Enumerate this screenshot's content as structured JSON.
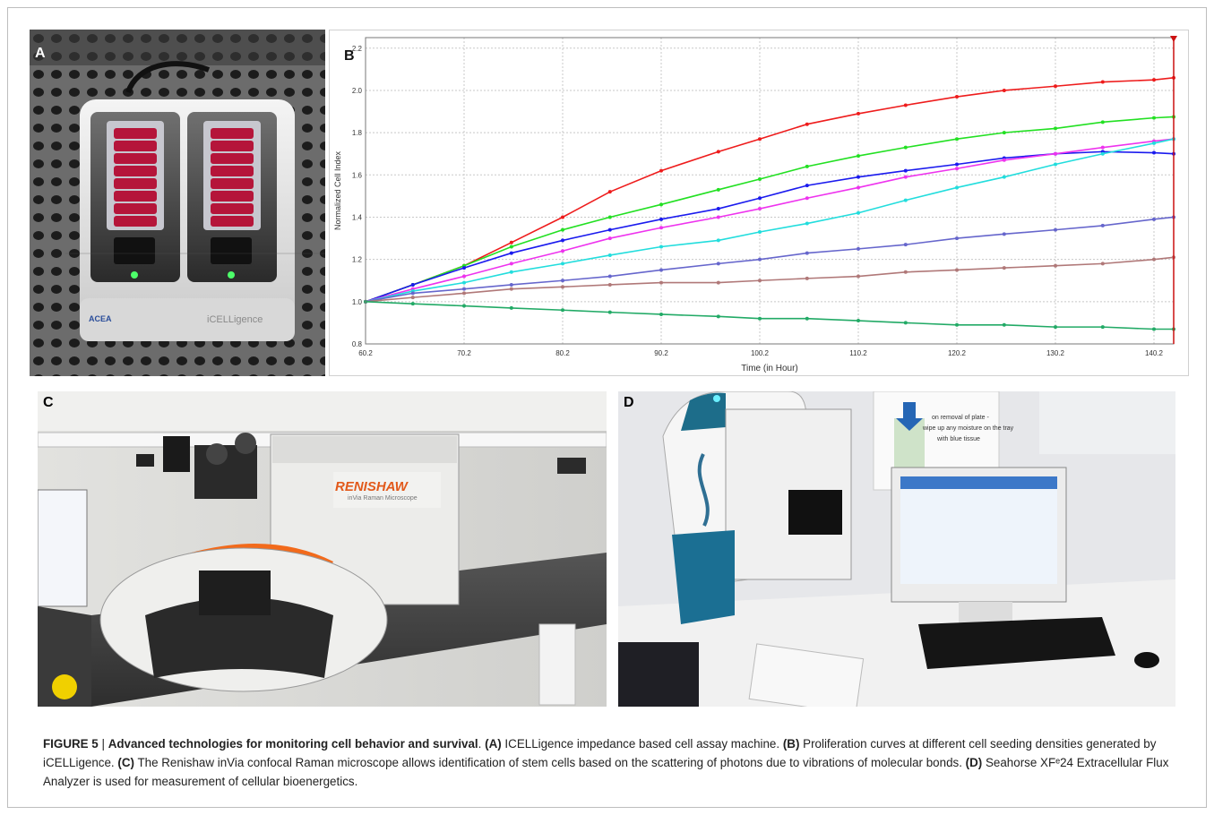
{
  "panels": {
    "a": {
      "letter": "A",
      "brand_logo": "ACEA",
      "device_label": "iCELLigence"
    },
    "b": {
      "letter": "B"
    },
    "c": {
      "letter": "C",
      "brand_label": "RENISHAW",
      "sub_label": "inVia Raman Microscope"
    },
    "d": {
      "letter": "D",
      "notice_line1": "on removal of plate -",
      "notice_line2": "wipe up any moisture on the tray",
      "notice_line3": "with blue tissue"
    }
  },
  "chart_data": {
    "type": "line",
    "title": "",
    "xlabel": "Time (in Hour)",
    "ylabel": "Normalized Cell Index",
    "xlim": [
      60.2,
      142.2
    ],
    "ylim": [
      0.8,
      2.25
    ],
    "xticks": [
      "60.2",
      "70.2",
      "80.2",
      "90.2",
      "100.2",
      "110.2",
      "120.2",
      "130.2",
      "140.2"
    ],
    "yticks": [
      "0.8",
      "1.0",
      "1.2",
      "1.4",
      "1.6",
      "1.8",
      "2.0",
      "2.2"
    ],
    "grid": true,
    "marker_x": 142.2,
    "series": [
      {
        "color": "#ee1c1c",
        "x": [
          60.2,
          65,
          70.2,
          75,
          80.2,
          85,
          90.2,
          96,
          100.2,
          105,
          110.2,
          115,
          120.2,
          125,
          130.2,
          135,
          140.2,
          142.2
        ],
        "y": [
          1.0,
          1.08,
          1.17,
          1.28,
          1.4,
          1.52,
          1.62,
          1.71,
          1.77,
          1.84,
          1.89,
          1.93,
          1.97,
          2.0,
          2.02,
          2.04,
          2.05,
          2.06
        ]
      },
      {
        "color": "#22e022",
        "x": [
          60.2,
          65,
          70.2,
          75,
          80.2,
          85,
          90.2,
          96,
          100.2,
          105,
          110.2,
          115,
          120.2,
          125,
          130.2,
          135,
          140.2,
          142.2
        ],
        "y": [
          1.0,
          1.08,
          1.17,
          1.26,
          1.34,
          1.4,
          1.46,
          1.53,
          1.58,
          1.64,
          1.69,
          1.73,
          1.77,
          1.8,
          1.82,
          1.85,
          1.87,
          1.875
        ]
      },
      {
        "color": "#1a1aee",
        "x": [
          60.2,
          65,
          70.2,
          75,
          80.2,
          85,
          90.2,
          96,
          100.2,
          105,
          110.2,
          115,
          120.2,
          125,
          130.2,
          135,
          140.2,
          142.2
        ],
        "y": [
          1.0,
          1.08,
          1.16,
          1.23,
          1.29,
          1.34,
          1.39,
          1.44,
          1.49,
          1.55,
          1.59,
          1.62,
          1.65,
          1.68,
          1.7,
          1.71,
          1.705,
          1.7
        ]
      },
      {
        "color": "#ee33ee",
        "x": [
          60.2,
          65,
          70.2,
          75,
          80.2,
          85,
          90.2,
          96,
          100.2,
          105,
          110.2,
          115,
          120.2,
          125,
          130.2,
          135,
          140.2,
          142.2
        ],
        "y": [
          1.0,
          1.06,
          1.12,
          1.18,
          1.24,
          1.3,
          1.35,
          1.4,
          1.44,
          1.49,
          1.54,
          1.59,
          1.63,
          1.67,
          1.7,
          1.73,
          1.76,
          1.77
        ]
      },
      {
        "color": "#22dddd",
        "x": [
          60.2,
          65,
          70.2,
          75,
          80.2,
          85,
          90.2,
          96,
          100.2,
          105,
          110.2,
          115,
          120.2,
          125,
          130.2,
          135,
          140.2,
          142.2
        ],
        "y": [
          1.0,
          1.05,
          1.09,
          1.14,
          1.18,
          1.22,
          1.26,
          1.29,
          1.33,
          1.37,
          1.42,
          1.48,
          1.54,
          1.59,
          1.65,
          1.7,
          1.75,
          1.77
        ]
      },
      {
        "color": "#6666cc",
        "x": [
          60.2,
          65,
          70.2,
          75,
          80.2,
          85,
          90.2,
          96,
          100.2,
          105,
          110.2,
          115,
          120.2,
          125,
          130.2,
          135,
          140.2,
          142.2
        ],
        "y": [
          1.0,
          1.04,
          1.06,
          1.08,
          1.1,
          1.12,
          1.15,
          1.18,
          1.2,
          1.23,
          1.25,
          1.27,
          1.3,
          1.32,
          1.34,
          1.36,
          1.39,
          1.4
        ]
      },
      {
        "color": "#b07878",
        "x": [
          60.2,
          65,
          70.2,
          75,
          80.2,
          85,
          90.2,
          96,
          100.2,
          105,
          110.2,
          115,
          120.2,
          125,
          130.2,
          135,
          140.2,
          142.2
        ],
        "y": [
          1.0,
          1.02,
          1.04,
          1.06,
          1.07,
          1.08,
          1.09,
          1.09,
          1.1,
          1.11,
          1.12,
          1.14,
          1.15,
          1.16,
          1.17,
          1.18,
          1.2,
          1.21
        ]
      },
      {
        "color": "#22aa66",
        "x": [
          60.2,
          65,
          70.2,
          75,
          80.2,
          85,
          90.2,
          96,
          100.2,
          105,
          110.2,
          115,
          120.2,
          125,
          130.2,
          135,
          140.2,
          142.2
        ],
        "y": [
          1.0,
          0.99,
          0.98,
          0.97,
          0.96,
          0.95,
          0.94,
          0.93,
          0.92,
          0.92,
          0.91,
          0.9,
          0.89,
          0.89,
          0.88,
          0.88,
          0.87,
          0.87
        ]
      }
    ]
  },
  "caption": {
    "figure_label": "FIGURE 5",
    "separator": " | ",
    "title": "Advanced technologies for monitoring cell behavior and survival",
    "title_end": ". ",
    "a_label": "(A)",
    "a_text": " ICELLigence impedance based cell assay machine. ",
    "b_label": "(B)",
    "b_text": " Proliferation curves at different cell seeding densities generated by iCELLigence. ",
    "c_label": "(C)",
    "c_text": " The Renishaw inVia confocal Raman microscope allows identification of stem cells based on the scattering of photons due to vibrations of molecular bonds. ",
    "d_label": "(D)",
    "d_text": " Seahorse XFᵉ24 Extracellular Flux Analyzer is used for measurement of cellular bioenergetics."
  }
}
